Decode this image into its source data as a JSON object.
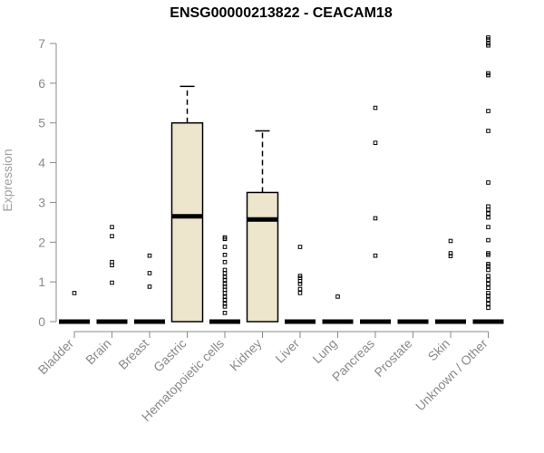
{
  "chart_data": {
    "type": "box",
    "title": "ENSG00000213822 - CEACAM18",
    "xlabel": "",
    "ylabel": "Expression",
    "ylim": [
      0,
      7.3
    ],
    "yticks": [
      0,
      1,
      2,
      3,
      4,
      5,
      6,
      7
    ],
    "grid": false,
    "legend": "none",
    "colors": {
      "box_fill": "#ede6cc",
      "box_stroke": "#000000",
      "axis": "#8a8a8a"
    },
    "categories": [
      "Bladder",
      "Brain",
      "Breast",
      "Gastric",
      "Hematopoietic cells",
      "Kidney",
      "Liver",
      "Lung",
      "Pancreas",
      "Prostate",
      "Skin",
      "Unknown / Other"
    ],
    "boxes": [
      {
        "category": "Bladder",
        "q1": 0,
        "median": 0,
        "q3": 0,
        "whisker_low": 0,
        "whisker_high": 0,
        "outliers": [
          0.72
        ]
      },
      {
        "category": "Brain",
        "q1": 0,
        "median": 0,
        "q3": 0,
        "whisker_low": 0,
        "whisker_high": 0,
        "outliers": [
          0.98,
          1.42,
          1.5,
          2.15,
          2.38
        ]
      },
      {
        "category": "Breast",
        "q1": 0,
        "median": 0,
        "q3": 0,
        "whisker_low": 0,
        "whisker_high": 0,
        "outliers": [
          0.88,
          1.22,
          1.66
        ]
      },
      {
        "category": "Gastric",
        "q1": 0,
        "median": 2.65,
        "q3": 5.0,
        "whisker_low": 0,
        "whisker_high": 5.92,
        "outliers": []
      },
      {
        "category": "Hematopoietic cells",
        "q1": 0,
        "median": 0,
        "q3": 0,
        "whisker_low": 0,
        "whisker_high": 0,
        "outliers": [
          0.22,
          0.38,
          0.45,
          0.55,
          0.62,
          0.72,
          0.8,
          0.88,
          0.95,
          1.05,
          1.12,
          1.22,
          1.3,
          1.5,
          1.68,
          1.88,
          2.08,
          2.12
        ]
      },
      {
        "category": "Kidney",
        "q1": 0,
        "median": 2.57,
        "q3": 3.25,
        "whisker_low": 0,
        "whisker_high": 4.8,
        "outliers": []
      },
      {
        "category": "Liver",
        "q1": 0,
        "median": 0,
        "q3": 0,
        "whisker_low": 0,
        "whisker_high": 0,
        "outliers": [
          0.72,
          0.82,
          0.95,
          1.02,
          1.1,
          1.15,
          1.88
        ]
      },
      {
        "category": "Lung",
        "q1": 0,
        "median": 0,
        "q3": 0,
        "whisker_low": 0,
        "whisker_high": 0,
        "outliers": [
          0.63
        ]
      },
      {
        "category": "Pancreas",
        "q1": 0,
        "median": 0,
        "q3": 0,
        "whisker_low": 0,
        "whisker_high": 0,
        "outliers": [
          1.66,
          2.6,
          4.5,
          5.38
        ]
      },
      {
        "category": "Prostate",
        "q1": 0,
        "median": 0,
        "q3": 0,
        "whisker_low": 0,
        "whisker_high": 0,
        "outliers": []
      },
      {
        "category": "Skin",
        "q1": 0,
        "median": 0,
        "q3": 0,
        "whisker_low": 0,
        "whisker_high": 0,
        "outliers": [
          1.65,
          1.72,
          2.03
        ]
      },
      {
        "category": "Unknown / Other",
        "q1": 0,
        "median": 0,
        "q3": 0,
        "whisker_low": 0,
        "whisker_high": 0,
        "outliers": [
          0.35,
          0.45,
          0.55,
          0.65,
          0.72,
          0.85,
          0.95,
          1.05,
          1.15,
          1.3,
          1.4,
          1.45,
          1.68,
          1.72,
          2.05,
          2.38,
          2.62,
          2.72,
          2.82,
          2.9,
          3.5,
          4.8,
          5.3,
          6.2,
          6.25,
          6.95,
          7.0,
          7.1,
          7.15
        ]
      }
    ]
  }
}
